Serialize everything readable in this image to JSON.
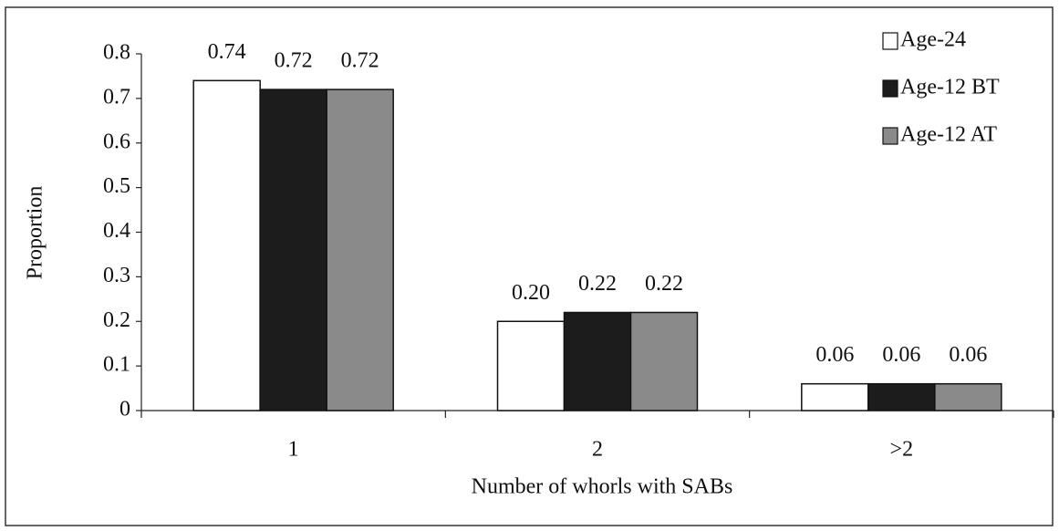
{
  "chart_data": {
    "type": "bar",
    "xlabel": "Number of whorls with SABs",
    "ylabel": "Proportion",
    "categories": [
      "1",
      "2",
      ">2"
    ],
    "series": [
      {
        "name": "Age-24",
        "color": "#ffffff",
        "values": [
          0.74,
          0.2,
          0.06
        ],
        "value_labels": [
          "0.74",
          "0.20",
          "0.06"
        ]
      },
      {
        "name": "Age-12 BT",
        "color": "#1c1c1c",
        "values": [
          0.72,
          0.22,
          0.06
        ],
        "value_labels": [
          "0.72",
          "0.22",
          "0.06"
        ]
      },
      {
        "name": "Age-12 AT",
        "color": "#8a8a8a",
        "values": [
          0.72,
          0.22,
          0.06
        ],
        "value_labels": [
          "0.72",
          "0.22",
          "0.06"
        ]
      }
    ],
    "ylim": [
      0,
      0.8
    ],
    "yticks": [
      0,
      0.1,
      0.2,
      0.3,
      0.4,
      0.5,
      0.6,
      0.7,
      0.8
    ],
    "legend": "upper right"
  }
}
